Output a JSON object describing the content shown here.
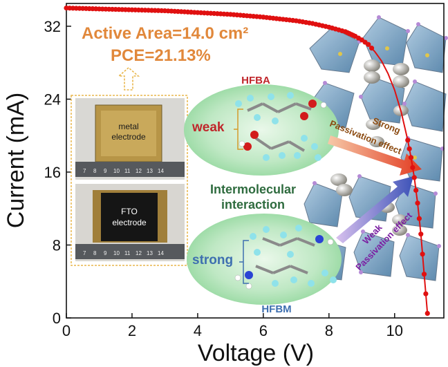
{
  "chart_data": {
    "type": "line",
    "xlabel": "Voltage (V)",
    "ylabel": "Current (mA)",
    "xlim": [
      0,
      11.5
    ],
    "ylim": [
      0,
      34.5
    ],
    "xticks": [
      "0",
      "2",
      "4",
      "6",
      "8",
      "10"
    ],
    "yticks": [
      "0",
      "8",
      "16",
      "24",
      "32"
    ],
    "grid": false,
    "series": [
      {
        "color": "#e01010",
        "x": [
          0,
          0.5,
          1.0,
          1.5,
          2.0,
          2.5,
          3.0,
          3.5,
          4.0,
          4.5,
          5.0,
          5.5,
          6.0,
          6.5,
          7.0,
          7.5,
          8.0,
          8.5,
          8.8,
          9.0,
          9.2,
          9.4,
          9.6,
          9.8,
          10.0,
          10.2,
          10.4,
          10.5,
          10.6,
          10.7,
          10.8,
          10.9,
          11.0
        ],
        "y": [
          34.0,
          33.95,
          33.9,
          33.85,
          33.8,
          33.75,
          33.7,
          33.6,
          33.5,
          33.4,
          33.3,
          33.15,
          33.0,
          32.8,
          32.6,
          32.3,
          31.9,
          31.4,
          30.9,
          30.5,
          30.0,
          29.2,
          28.2,
          26.8,
          25.0,
          22.6,
          19.5,
          17.6,
          15.4,
          12.6,
          9.2,
          4.8,
          0.5
        ]
      }
    ],
    "annotations": {
      "active_area": "Active Area=14.0 cm²",
      "pce": "PCE=21.13%",
      "hfba": "HFBA",
      "hfbm": "HFBM",
      "weak": "weak",
      "strong": "strong",
      "intermolecular_1": "Intermolecular",
      "intermolecular_2": "interaction",
      "strong_passivation_1": "Strong",
      "strong_passivation_2": "Passivation effect",
      "weak_passivation_1": "Weak",
      "weak_passivation_2": "Passivation effect",
      "metal_1": "metal",
      "metal_2": "electrode",
      "fto_1": "FTO",
      "fto_2": "electrode"
    },
    "colors": {
      "curve": "#e01010",
      "annotation_orange": "#e1883b",
      "hfba_red": "#c0262b",
      "hfbm_blue": "#3e6fb0",
      "interaction_green": "#2e6b3e",
      "weak_passivation_purple": "#7b1fa2"
    }
  }
}
